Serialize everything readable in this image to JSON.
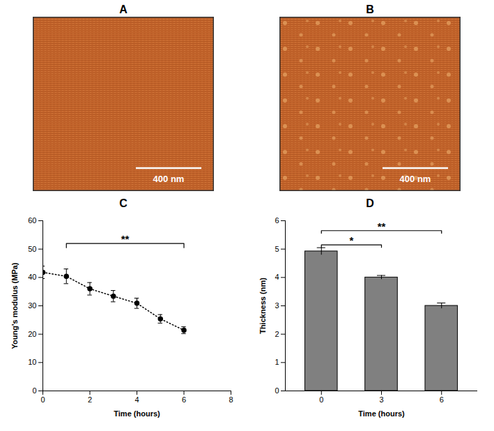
{
  "images": [
    {
      "label": "A",
      "scale_bar": "400 nm"
    },
    {
      "label": "B",
      "scale_bar": "400 nm"
    }
  ],
  "chart_data": [
    {
      "type": "line",
      "title": "C",
      "x": [
        0,
        1,
        2,
        3,
        4,
        5,
        6
      ],
      "values": [
        41.8,
        40.4,
        36,
        33.4,
        30.9,
        25.4,
        21.4
      ],
      "errors": [
        2.2,
        2.6,
        2.2,
        2,
        1.8,
        1.5,
        1.2
      ],
      "color": "#000000",
      "marker": "circle",
      "line_style": "dotted",
      "xlabel": "Time (hours)",
      "ylabel": "Young's modulus (MPa)",
      "xlim": [
        0,
        8
      ],
      "xticks": [
        0,
        2,
        4,
        6,
        8
      ],
      "ylim": [
        0,
        60
      ],
      "yticks": [
        0,
        10,
        20,
        30,
        40,
        50,
        60
      ],
      "grid": false,
      "annotations": [
        {
          "text": "**",
          "x1": 1,
          "x2": 6,
          "y": 52
        }
      ]
    },
    {
      "type": "bar",
      "title": "D",
      "categories": [
        "0",
        "3",
        "6"
      ],
      "values": [
        4.92,
        4.0,
        3.0
      ],
      "errors": [
        0.13,
        0.07,
        0.1
      ],
      "color": "#808080",
      "xlabel": "Time (hours)",
      "ylabel": "Thickness (nm)",
      "ylim": [
        0,
        6
      ],
      "yticks": [
        0,
        1,
        2,
        3,
        4,
        5,
        6
      ],
      "grid": false,
      "annotations": [
        {
          "text": "*",
          "x1": "0",
          "x2": "3",
          "y": 5.15
        },
        {
          "text": "**",
          "x1": "0",
          "x2": "6",
          "y": 5.65
        }
      ]
    }
  ]
}
